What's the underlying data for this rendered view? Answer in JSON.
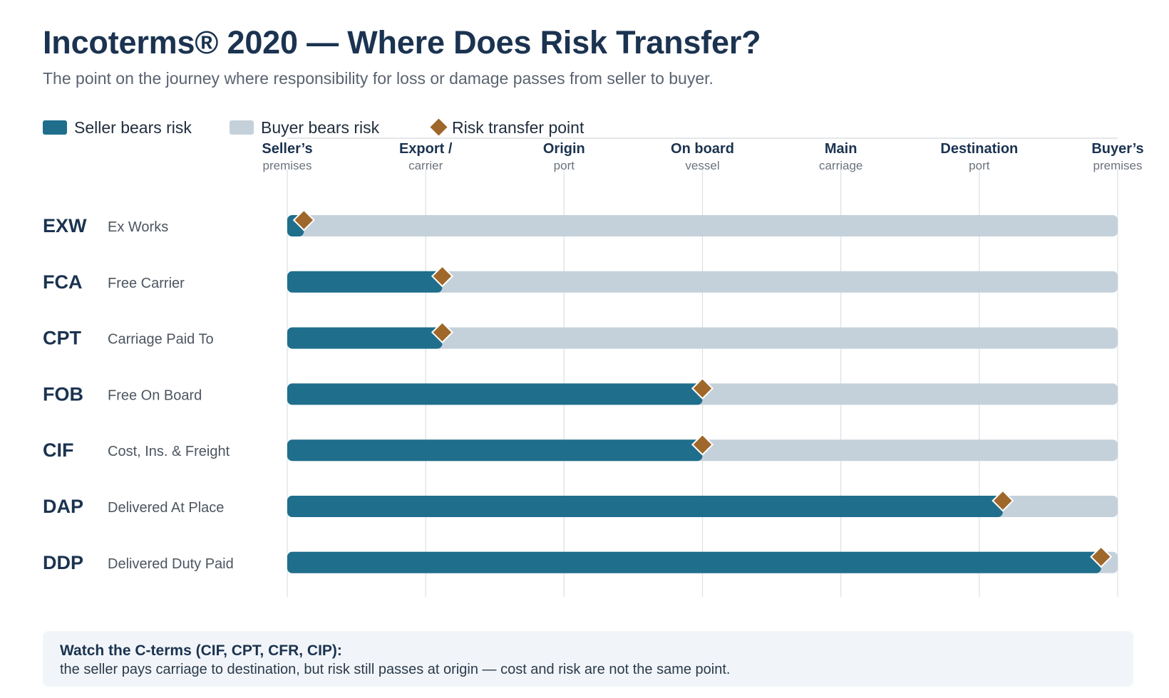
{
  "header": {
    "title": "Incoterms® 2020 — Where Does Risk Transfer?",
    "subtitle": "The point on the journey where responsibility for loss or damage passes from seller to buyer."
  },
  "legend": {
    "seller_label": "Seller bears risk",
    "buyer_label": "Buyer bears risk",
    "transfer_label": "Risk transfer point"
  },
  "colors": {
    "seller": "#1f6e8c",
    "buyer": "#c5d1da",
    "transfer": "#a0672b",
    "gridline": "#dcdfe3",
    "title": "#1b3350"
  },
  "chart_data": {
    "type": "bar",
    "stages": [
      {
        "top": "Seller’s",
        "bottom": "premises"
      },
      {
        "top": "Export /",
        "bottom": "carrier"
      },
      {
        "top": "Origin",
        "bottom": "port"
      },
      {
        "top": "On board",
        "bottom": "vessel"
      },
      {
        "top": "Main",
        "bottom": "carriage"
      },
      {
        "top": "Destination",
        "bottom": "port"
      },
      {
        "top": "Buyer’s",
        "bottom": "premises"
      }
    ],
    "xlim": [
      0,
      6
    ],
    "terms": [
      {
        "code": "EXW",
        "name": "Ex Works",
        "transfer": 0.12
      },
      {
        "code": "FCA",
        "name": "Free Carrier",
        "transfer": 1.12
      },
      {
        "code": "CPT",
        "name": "Carriage Paid To",
        "transfer": 1.12
      },
      {
        "code": "FOB",
        "name": "Free On Board",
        "transfer": 3.0
      },
      {
        "code": "CIF",
        "name": "Cost, Ins. & Freight",
        "transfer": 3.0
      },
      {
        "code": "DAP",
        "name": "Delivered At Place",
        "transfer": 5.17
      },
      {
        "code": "DDP",
        "name": "Delivered Duty Paid",
        "transfer": 5.88
      }
    ]
  },
  "callout": {
    "title": "Watch the C-terms (CIF, CPT, CFR, CIP):",
    "body": "the seller pays carriage to destination, but risk still passes at origin — cost and risk are not the same point."
  }
}
